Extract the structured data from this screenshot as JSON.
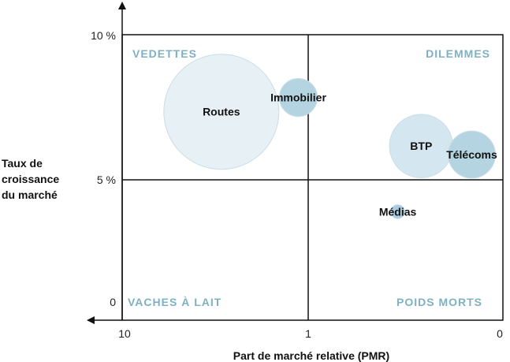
{
  "chart_data": {
    "type": "scatter",
    "xlabel": "Part de marché relative (PMR)",
    "ylabel": [
      "Taux de",
      "croissance",
      "du marché"
    ],
    "x_tick_labels": [
      "10",
      "1",
      "0"
    ],
    "y_tick_labels": [
      "10 %",
      "5 %",
      "0"
    ],
    "x_scale": "reversed",
    "ylim": [
      0,
      10
    ],
    "quadrants": {
      "top_left": "VEDETTES",
      "top_right": "DILEMMES",
      "bottom_left": "VACHES À LAIT",
      "bottom_right": "POIDS MORTS"
    },
    "bubbles": [
      {
        "label": "Routes",
        "pmr_position": 2.93,
        "growth": 7.3,
        "size": 1.0,
        "color": "#e6f0f5"
      },
      {
        "label": "Immobilier",
        "pmr_position": 1.13,
        "growth": 7.8,
        "size": 0.33,
        "color": "#b4d4e2"
      },
      {
        "label": "BTP",
        "pmr_position": 0.42,
        "growth": 6.1,
        "size": 0.55,
        "color": "#d4e6ef"
      },
      {
        "label": "Télécoms",
        "pmr_position": 0.16,
        "growth": 5.8,
        "size": 0.41,
        "color": "#b4d4e2"
      },
      {
        "label": "Médias",
        "pmr_position": 0.54,
        "growth": 3.8,
        "size": 0.12,
        "color": "#a8cce0"
      }
    ],
    "grid": false,
    "legend": "none"
  }
}
